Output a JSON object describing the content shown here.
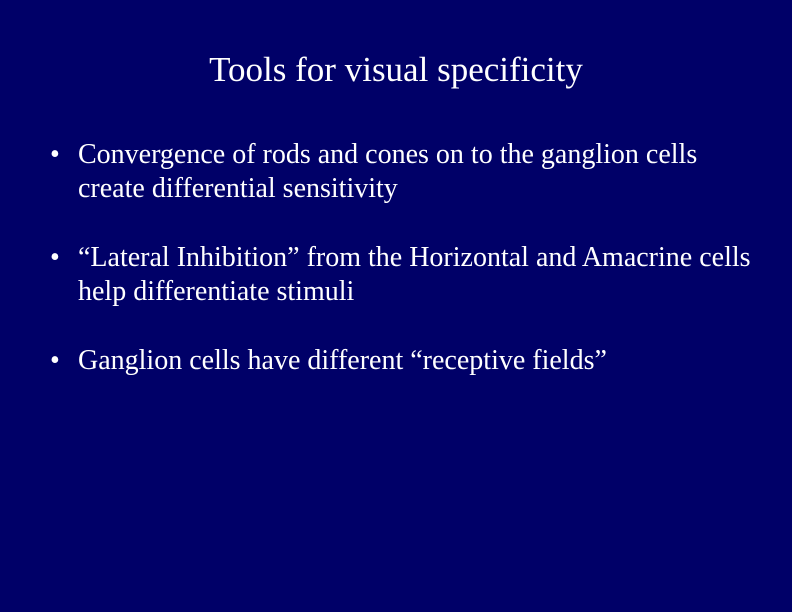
{
  "slide": {
    "background_color": "#000068",
    "text_color": "#ffffff",
    "font_family": "Times New Roman",
    "title": "Tools for visual specificity",
    "title_fontsize": 35,
    "bullet_fontsize": 28,
    "bullet_marker": "•",
    "bullets": [
      "Convergence of rods and cones on to the ganglion cells create differential sensitivity",
      "“Lateral Inhibition” from the Horizontal and Amacrine cells help differentiate stimuli",
      "Ganglion cells have different “receptive fields”"
    ]
  }
}
